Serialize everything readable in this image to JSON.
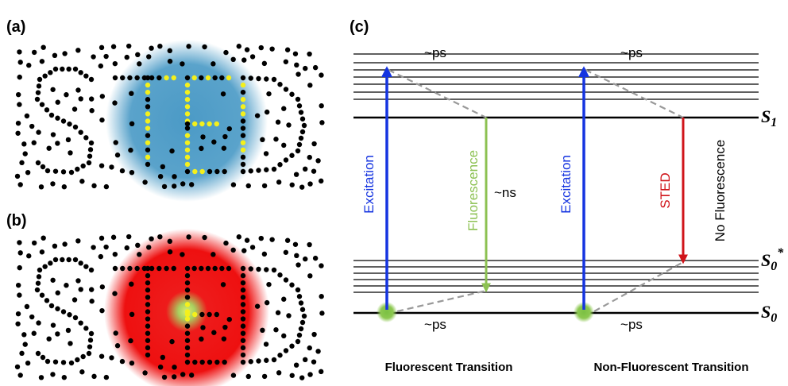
{
  "panels": {
    "a": {
      "label": "(a)"
    },
    "b": {
      "label": "(b)"
    },
    "c": {
      "label": "(c)"
    }
  },
  "diagram": {
    "levels": {
      "s1": {
        "symbol": "S",
        "subscript": "1"
      },
      "s0_star": {
        "symbol": "S",
        "subscript": "0",
        "superscript": "*"
      },
      "s0": {
        "symbol": "S",
        "subscript": "0"
      }
    },
    "time_labels": [
      "~ps",
      "~ps",
      "~ps",
      "~ps",
      "~ns"
    ],
    "arrows": [
      "Excitation",
      "Fluorescence",
      "Excitation",
      "STED",
      "No Fluorescence"
    ],
    "captions": [
      "Fluorescent Transition",
      "Non-Fluorescent Transition"
    ]
  }
}
